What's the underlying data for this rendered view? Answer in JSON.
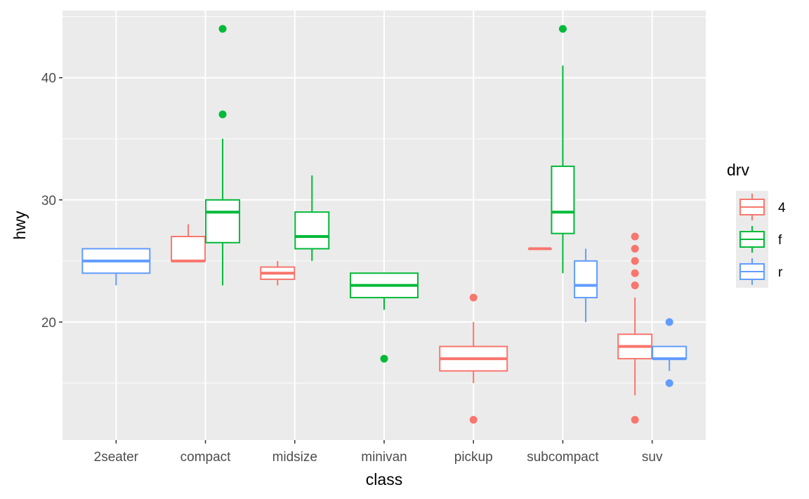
{
  "chart_data": {
    "type": "boxplot",
    "xlabel": "class",
    "ylabel": "hwy",
    "ylim": [
      10.34,
      45.5
    ],
    "yticks": [
      20,
      30,
      40
    ],
    "ytick_labels": [
      "20",
      "30",
      "40"
    ],
    "grid": true,
    "categories": [
      "2seater",
      "compact",
      "midsize",
      "minivan",
      "pickup",
      "subcompact",
      "suv"
    ],
    "legend": {
      "title": "drv",
      "placement": "right",
      "entries": [
        {
          "label": "4",
          "color": "#F8766D"
        },
        {
          "label": "f",
          "color": "#00BA38"
        },
        {
          "label": "r",
          "color": "#619CFF"
        }
      ]
    },
    "boxes": [
      {
        "category": "2seater",
        "drv": "r",
        "lower": 23,
        "q1": 24,
        "median": 25,
        "q3": 26,
        "upper": 26,
        "outliers": []
      },
      {
        "category": "compact",
        "drv": "4",
        "lower": 25,
        "q1": 25,
        "median": 25,
        "q3": 27,
        "upper": 28,
        "outliers": []
      },
      {
        "category": "compact",
        "drv": "f",
        "lower": 23,
        "q1": 26.5,
        "median": 29,
        "q3": 30,
        "upper": 35,
        "outliers": [
          37,
          44
        ]
      },
      {
        "category": "midsize",
        "drv": "4",
        "lower": 23,
        "q1": 23.5,
        "median": 24,
        "q3": 24.5,
        "upper": 25,
        "outliers": []
      },
      {
        "category": "midsize",
        "drv": "f",
        "lower": 25,
        "q1": 26,
        "median": 27,
        "q3": 29,
        "upper": 32,
        "outliers": []
      },
      {
        "category": "minivan",
        "drv": "f",
        "lower": 21,
        "q1": 22,
        "median": 23,
        "q3": 24,
        "upper": 24,
        "outliers": [
          17
        ]
      },
      {
        "category": "pickup",
        "drv": "4",
        "lower": 15,
        "q1": 16,
        "median": 17,
        "q3": 18,
        "upper": 20,
        "outliers": [
          22,
          12
        ]
      },
      {
        "category": "subcompact",
        "drv": "4",
        "lower": 26,
        "q1": 26,
        "median": 26,
        "q3": 26,
        "upper": 26,
        "outliers": []
      },
      {
        "category": "subcompact",
        "drv": "f",
        "lower": 24,
        "q1": 27.25,
        "median": 29,
        "q3": 32.75,
        "upper": 41,
        "outliers": [
          44
        ]
      },
      {
        "category": "subcompact",
        "drv": "r",
        "lower": 20,
        "q1": 22,
        "median": 23,
        "q3": 25,
        "upper": 26,
        "outliers": []
      },
      {
        "category": "suv",
        "drv": "4",
        "lower": 14,
        "q1": 17,
        "median": 18,
        "q3": 19,
        "upper": 22,
        "outliers": [
          27,
          26,
          25,
          24,
          23,
          12
        ]
      },
      {
        "category": "suv",
        "drv": "r",
        "lower": 16,
        "q1": 17,
        "median": 17,
        "q3": 18,
        "upper": 18,
        "outliers": [
          20,
          15
        ]
      }
    ]
  }
}
